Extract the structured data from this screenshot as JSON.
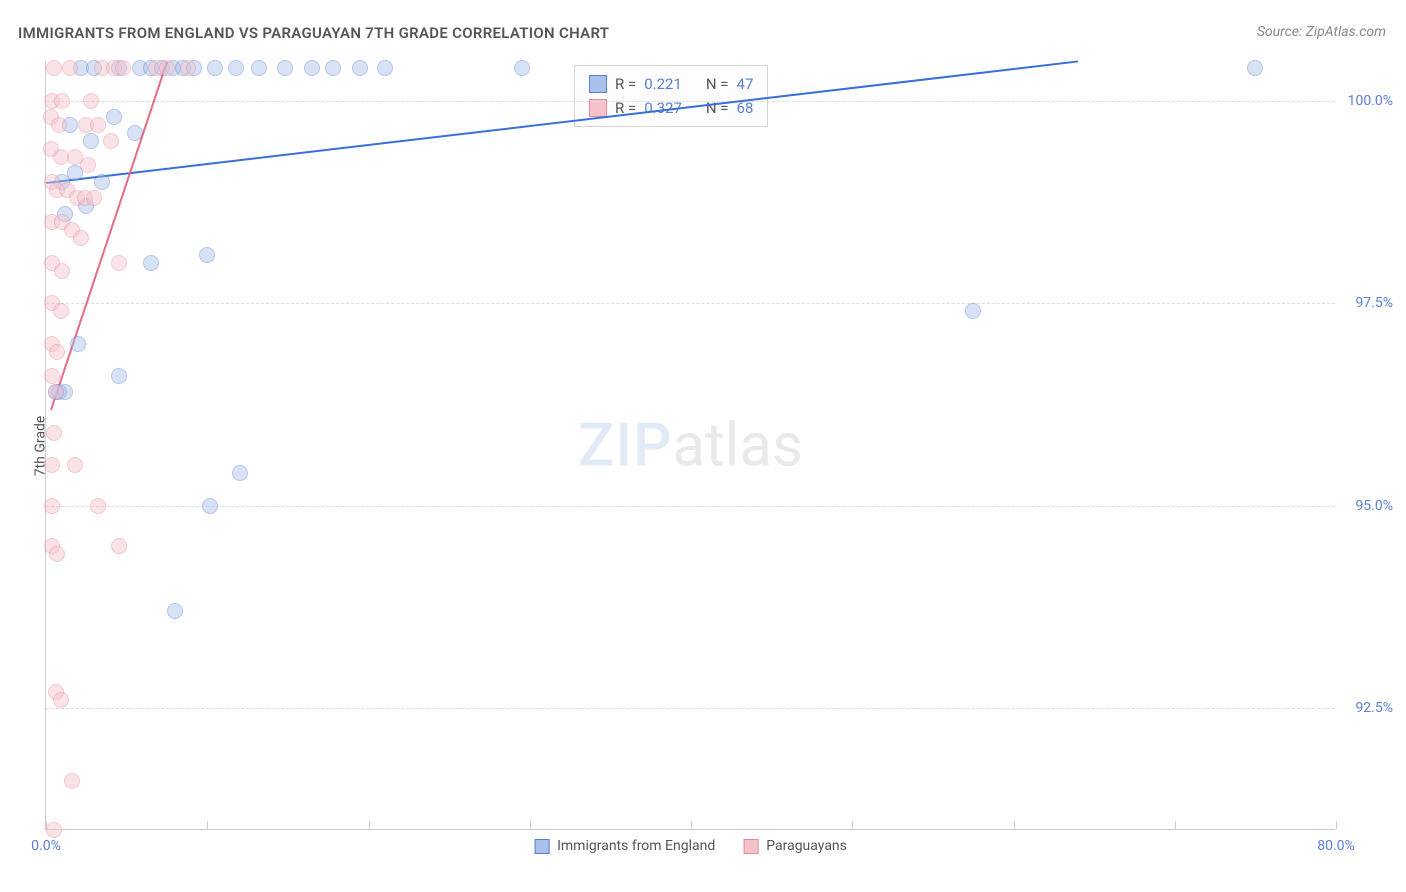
{
  "title": "IMMIGRANTS FROM ENGLAND VS PARAGUAYAN 7TH GRADE CORRELATION CHART",
  "source": "Source: ZipAtlas.com",
  "y_axis_label": "7th Grade",
  "watermark": {
    "part1": "ZIP",
    "part2": "atlas"
  },
  "chart": {
    "type": "scatter",
    "xlim": [
      0,
      80
    ],
    "ylim": [
      91,
      100.5
    ],
    "x_ticks": [
      0,
      10,
      20,
      30,
      40,
      50,
      60,
      70,
      80
    ],
    "x_tick_labels": {
      "0": "0.0%",
      "80": "80.0%"
    },
    "y_ticks": [
      92.5,
      95.0,
      97.5,
      100.0
    ],
    "y_tick_labels": [
      "92.5%",
      "95.0%",
      "97.5%",
      "100.0%"
    ],
    "background_color": "#ffffff",
    "grid_color": "#dddddd",
    "axis_color": "#cccccc",
    "tick_label_color": "#5b7fd6",
    "marker_radius": 8,
    "marker_opacity": 0.45,
    "series": [
      {
        "name": "Immigrants from England",
        "fill_color": "#a8c0ea",
        "stroke_color": "#5b7fd6",
        "trend_color": "#3a6fd8",
        "r_value": "0.221",
        "n_value": "47",
        "trend": {
          "x1": 0,
          "y1": 99.0,
          "x2": 64,
          "y2": 100.5
        },
        "points": [
          {
            "x": 2.2,
            "y": 100.4
          },
          {
            "x": 3.0,
            "y": 100.4
          },
          {
            "x": 4.5,
            "y": 100.4
          },
          {
            "x": 5.8,
            "y": 100.4
          },
          {
            "x": 6.5,
            "y": 100.4
          },
          {
            "x": 7.2,
            "y": 100.4
          },
          {
            "x": 7.9,
            "y": 100.4
          },
          {
            "x": 8.5,
            "y": 100.4
          },
          {
            "x": 9.2,
            "y": 100.4
          },
          {
            "x": 10.5,
            "y": 100.4
          },
          {
            "x": 11.8,
            "y": 100.4
          },
          {
            "x": 13.2,
            "y": 100.4
          },
          {
            "x": 14.8,
            "y": 100.4
          },
          {
            "x": 16.5,
            "y": 100.4
          },
          {
            "x": 17.8,
            "y": 100.4
          },
          {
            "x": 19.5,
            "y": 100.4
          },
          {
            "x": 21.0,
            "y": 100.4
          },
          {
            "x": 29.5,
            "y": 100.4
          },
          {
            "x": 75.0,
            "y": 100.4
          },
          {
            "x": 1.5,
            "y": 99.7
          },
          {
            "x": 2.8,
            "y": 99.5
          },
          {
            "x": 4.2,
            "y": 99.8
          },
          {
            "x": 5.5,
            "y": 99.6
          },
          {
            "x": 1.0,
            "y": 99.0
          },
          {
            "x": 1.8,
            "y": 99.1
          },
          {
            "x": 3.5,
            "y": 99.0
          },
          {
            "x": 1.2,
            "y": 98.6
          },
          {
            "x": 2.5,
            "y": 98.7
          },
          {
            "x": 6.5,
            "y": 98.0
          },
          {
            "x": 10.0,
            "y": 98.1
          },
          {
            "x": 57.5,
            "y": 97.4
          },
          {
            "x": 2.0,
            "y": 97.0
          },
          {
            "x": 4.5,
            "y": 96.6
          },
          {
            "x": 0.6,
            "y": 96.4
          },
          {
            "x": 0.8,
            "y": 96.4
          },
          {
            "x": 1.2,
            "y": 96.4
          },
          {
            "x": 12.0,
            "y": 95.4
          },
          {
            "x": 10.2,
            "y": 95.0
          },
          {
            "x": 8.0,
            "y": 93.7
          }
        ]
      },
      {
        "name": "Paraguayans",
        "fill_color": "#f5c2cb",
        "stroke_color": "#e88a9a",
        "trend_color": "#e86a85",
        "r_value": "0.327",
        "n_value": "68",
        "trend": {
          "x1": 0.3,
          "y1": 96.2,
          "x2": 7.5,
          "y2": 100.5
        },
        "points": [
          {
            "x": 0.5,
            "y": 100.4
          },
          {
            "x": 1.5,
            "y": 100.4
          },
          {
            "x": 3.5,
            "y": 100.4
          },
          {
            "x": 4.2,
            "y": 100.4
          },
          {
            "x": 4.8,
            "y": 100.4
          },
          {
            "x": 6.8,
            "y": 100.4
          },
          {
            "x": 7.5,
            "y": 100.4
          },
          {
            "x": 8.8,
            "y": 100.4
          },
          {
            "x": 0.4,
            "y": 100.0
          },
          {
            "x": 1.0,
            "y": 100.0
          },
          {
            "x": 2.8,
            "y": 100.0
          },
          {
            "x": 0.3,
            "y": 99.8
          },
          {
            "x": 0.8,
            "y": 99.7
          },
          {
            "x": 2.5,
            "y": 99.7
          },
          {
            "x": 3.2,
            "y": 99.7
          },
          {
            "x": 4.0,
            "y": 99.5
          },
          {
            "x": 0.3,
            "y": 99.4
          },
          {
            "x": 0.9,
            "y": 99.3
          },
          {
            "x": 1.8,
            "y": 99.3
          },
          {
            "x": 2.6,
            "y": 99.2
          },
          {
            "x": 0.4,
            "y": 99.0
          },
          {
            "x": 0.7,
            "y": 98.9
          },
          {
            "x": 1.3,
            "y": 98.9
          },
          {
            "x": 1.9,
            "y": 98.8
          },
          {
            "x": 2.4,
            "y": 98.8
          },
          {
            "x": 3.0,
            "y": 98.8
          },
          {
            "x": 0.4,
            "y": 98.5
          },
          {
            "x": 1.0,
            "y": 98.5
          },
          {
            "x": 1.6,
            "y": 98.4
          },
          {
            "x": 2.2,
            "y": 98.3
          },
          {
            "x": 0.4,
            "y": 98.0
          },
          {
            "x": 1.0,
            "y": 97.9
          },
          {
            "x": 4.5,
            "y": 98.0
          },
          {
            "x": 0.4,
            "y": 97.5
          },
          {
            "x": 0.9,
            "y": 97.4
          },
          {
            "x": 0.4,
            "y": 97.0
          },
          {
            "x": 0.7,
            "y": 96.9
          },
          {
            "x": 0.4,
            "y": 96.6
          },
          {
            "x": 0.6,
            "y": 96.4
          },
          {
            "x": 0.5,
            "y": 95.9
          },
          {
            "x": 0.4,
            "y": 95.5
          },
          {
            "x": 1.8,
            "y": 95.5
          },
          {
            "x": 0.4,
            "y": 95.0
          },
          {
            "x": 3.2,
            "y": 95.0
          },
          {
            "x": 0.4,
            "y": 94.5
          },
          {
            "x": 0.7,
            "y": 94.4
          },
          {
            "x": 4.5,
            "y": 94.5
          },
          {
            "x": 0.6,
            "y": 92.7
          },
          {
            "x": 0.9,
            "y": 92.6
          },
          {
            "x": 1.6,
            "y": 91.6
          },
          {
            "x": 0.5,
            "y": 91.0
          }
        ]
      }
    ],
    "legend": {
      "r_label": "R =",
      "n_label": "N ="
    },
    "bottom_legend": [
      {
        "label": "Immigrants from England"
      },
      {
        "label": "Paraguayans"
      }
    ]
  }
}
